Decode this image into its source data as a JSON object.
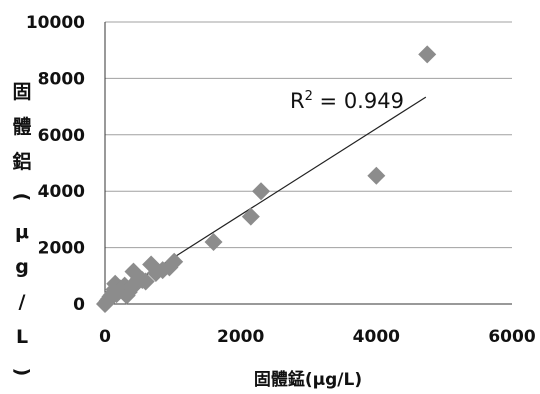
{
  "chart_data": {
    "type": "scatter",
    "xlabel": "固體錳(μg/L)",
    "ylabel": "固體鋁(μg/L)",
    "xlim": [
      0,
      6000
    ],
    "ylim": [
      0,
      10000
    ],
    "x_ticks": [
      "0",
      "2000",
      "4000",
      "6000"
    ],
    "y_ticks": [
      "0",
      "2000",
      "4000",
      "6000",
      "8000",
      "10000"
    ],
    "grid": "horizontal",
    "legend": "none",
    "marker": "diamond",
    "marker_color": "#8c8c8c",
    "trendline": {
      "label_prefix": "R",
      "label_sup": "2",
      "label_suffix": " = 0.949",
      "slope": 1.53,
      "intercept": 100,
      "x_range": [
        50,
        4730
      ]
    },
    "points": [
      {
        "x": 0,
        "y": 0
      },
      {
        "x": 20,
        "y": 50
      },
      {
        "x": 40,
        "y": 120
      },
      {
        "x": 60,
        "y": 180
      },
      {
        "x": 80,
        "y": 260
      },
      {
        "x": 100,
        "y": 320
      },
      {
        "x": 120,
        "y": 400
      },
      {
        "x": 140,
        "y": 520
      },
      {
        "x": 150,
        "y": 720
      },
      {
        "x": 170,
        "y": 350
      },
      {
        "x": 200,
        "y": 450
      },
      {
        "x": 230,
        "y": 550
      },
      {
        "x": 260,
        "y": 500
      },
      {
        "x": 290,
        "y": 650
      },
      {
        "x": 320,
        "y": 300
      },
      {
        "x": 350,
        "y": 420
      },
      {
        "x": 380,
        "y": 600
      },
      {
        "x": 420,
        "y": 1150
      },
      {
        "x": 450,
        "y": 700
      },
      {
        "x": 500,
        "y": 900
      },
      {
        "x": 550,
        "y": 850
      },
      {
        "x": 600,
        "y": 800
      },
      {
        "x": 680,
        "y": 1400
      },
      {
        "x": 750,
        "y": 1100
      },
      {
        "x": 850,
        "y": 1200
      },
      {
        "x": 950,
        "y": 1300
      },
      {
        "x": 1020,
        "y": 1500
      },
      {
        "x": 1600,
        "y": 2200
      },
      {
        "x": 2150,
        "y": 3100
      },
      {
        "x": 2300,
        "y": 4000
      },
      {
        "x": 4000,
        "y": 4550
      },
      {
        "x": 4750,
        "y": 8850
      }
    ]
  }
}
